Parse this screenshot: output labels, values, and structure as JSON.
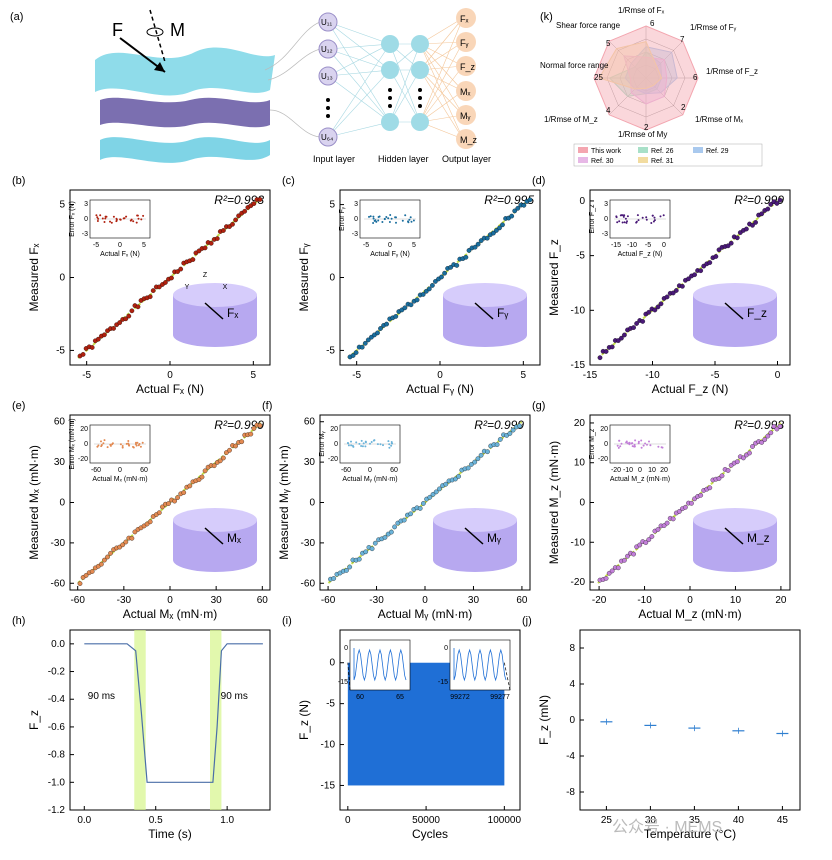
{
  "panel_labels": [
    "(a)",
    "(b)",
    "(c)",
    "(d)",
    "(e)",
    "(f)",
    "(g)",
    "(h)",
    "(i)",
    "(j)",
    "(k)"
  ],
  "panel_a": {
    "force_label": "F",
    "moment_label": "M",
    "inputs": [
      "U₁₁",
      "U₁₂",
      "U₁₃",
      "U₆₄"
    ],
    "outputs": [
      "Fₓ",
      "Fᵧ",
      "F_z",
      "Mₓ",
      "Mᵧ",
      "M_z"
    ],
    "layer_labels": [
      "Input layer",
      "Hidden layer",
      "Output layer"
    ]
  },
  "panel_k": {
    "axes": [
      "1/Rmse of Fₓ",
      "1/Rmse of Fᵧ",
      "1/Rmse of F_z",
      "1/Rmse of Mₓ",
      "1/Rmse of My",
      "1/Rmse of M_z",
      "Normal force range",
      "Shear force range"
    ],
    "axis_ticks": [
      "6",
      "7",
      "6",
      "2",
      "2",
      "4",
      "25",
      "5"
    ],
    "legend": [
      "This work",
      "Ref. 26",
      "Ref. 29",
      "Ref. 30",
      "Ref. 31"
    ],
    "colors": [
      "#f4a6b0",
      "#a8e0c8",
      "#a9c9ee",
      "#e7b8e6",
      "#f2dca0"
    ]
  },
  "chart_data": [
    {
      "id": "b",
      "type": "scatter",
      "title": "",
      "r2": "R²=0.993",
      "xlabel": "Actual Fₓ (N)",
      "ylabel": "Measured Fₓ",
      "xlim": [
        -6,
        6
      ],
      "ylim": [
        -6,
        6
      ],
      "xticks": [
        -5,
        0,
        5
      ],
      "yticks": [
        -5,
        0,
        5
      ],
      "color": "#b0210f",
      "inset": {
        "xlabel": "Actual Fₓ (N)",
        "ylabel": "Error Fₓ (N)",
        "xticks": [
          -5,
          0,
          5
        ],
        "yticks": [
          -3,
          0,
          3
        ]
      },
      "icon_label": "Fₓ",
      "axes_icon": [
        "Z",
        "Y",
        "X"
      ]
    },
    {
      "id": "c",
      "type": "scatter",
      "r2": "R²=0.995",
      "xlabel": "Actual Fᵧ (N)",
      "ylabel": "Measured Fᵧ",
      "xlim": [
        -6,
        6
      ],
      "ylim": [
        -6,
        6
      ],
      "xticks": [
        -5,
        0,
        5
      ],
      "yticks": [
        -5,
        0,
        5
      ],
      "color": "#1a6e9e",
      "inset": {
        "xlabel": "Actual Fᵧ (N)",
        "ylabel": "Error Fᵧ",
        "xticks": [
          -5,
          0,
          5
        ],
        "yticks": [
          -3,
          0,
          3
        ]
      },
      "icon_label": "Fᵧ"
    },
    {
      "id": "d",
      "type": "scatter",
      "r2": "R²=0.999",
      "xlabel": "Actual F_z (N)",
      "ylabel": "Measured F_z",
      "xlim": [
        -15,
        1
      ],
      "ylim": [
        -15,
        1
      ],
      "xticks": [
        -15,
        -10,
        -5,
        0
      ],
      "yticks": [
        -15,
        -10,
        -5,
        0
      ],
      "color": "#4a1a78",
      "inset": {
        "xlabel": "Actual F_z (N)",
        "ylabel": "Error F_z",
        "xticks": [
          -15,
          -10,
          -5,
          0
        ],
        "yticks": [
          -3,
          0,
          3
        ]
      },
      "icon_label": "F_z"
    },
    {
      "id": "e",
      "type": "scatter",
      "r2": "R²=0.999",
      "xlabel": "Actual Mₓ (mN·m)",
      "ylabel": "Measured Mₓ (mN·m)",
      "xlim": [
        -65,
        65
      ],
      "ylim": [
        -65,
        65
      ],
      "xticks": [
        -60,
        -30,
        0,
        30,
        60
      ],
      "yticks": [
        -60,
        -30,
        0,
        30,
        60
      ],
      "color": "#e38a52",
      "inset": {
        "xlabel": "Actual Mₓ (mN·m)",
        "ylabel": "Error Mₓ (mN·m)",
        "xticks": [
          -60,
          0,
          60
        ],
        "yticks": [
          -20,
          0,
          20
        ]
      },
      "icon_label": "Mₓ"
    },
    {
      "id": "f",
      "type": "scatter",
      "r2": "R²=0.999",
      "xlabel": "Actual Mᵧ (mN·m)",
      "ylabel": "Measured Mᵧ (mN·m)",
      "xlim": [
        -65,
        65
      ],
      "ylim": [
        -65,
        65
      ],
      "xticks": [
        -60,
        -30,
        0,
        30,
        60
      ],
      "yticks": [
        -60,
        -30,
        0,
        30,
        60
      ],
      "color": "#6bb3d9",
      "inset": {
        "xlabel": "Actual Mᵧ (mN·m)",
        "ylabel": "Error Mᵧ",
        "xticks": [
          -60,
          0,
          60
        ],
        "yticks": [
          -20,
          0,
          20
        ]
      },
      "icon_label": "Mᵧ"
    },
    {
      "id": "g",
      "type": "scatter",
      "r2": "R²=0.998",
      "xlabel": "Actual M_z (mN·m)",
      "ylabel": "Measured M_z (mN·m)",
      "xlim": [
        -22,
        22
      ],
      "ylim": [
        -22,
        22
      ],
      "xticks": [
        -20,
        -10,
        0,
        10,
        20
      ],
      "yticks": [
        -20,
        -10,
        0,
        10,
        20
      ],
      "color": "#c27fd8",
      "inset": {
        "xlabel": "Actual M_z (mN·m)",
        "ylabel": "Error M_z",
        "xticks": [
          -20,
          -10,
          0,
          10,
          20
        ],
        "yticks": [
          -20,
          0,
          20
        ]
      },
      "icon_label": "M_z"
    },
    {
      "id": "h",
      "type": "line",
      "xlabel": "Time (s)",
      "ylabel": "F_z",
      "xlim": [
        -0.1,
        1.3
      ],
      "ylim": [
        -1.2,
        0.1
      ],
      "xticks": [
        0.0,
        0.5,
        1.0
      ],
      "yticks": [
        0.0,
        -0.2,
        -0.4,
        -0.6,
        -0.8,
        -1.0,
        -1.2
      ],
      "highlights": [
        [
          0.35,
          0.43
        ],
        [
          0.88,
          0.96
        ]
      ],
      "annotations": [
        "90 ms",
        "90 ms"
      ],
      "x": [
        0,
        0.3,
        0.36,
        0.4,
        0.44,
        0.9,
        0.93,
        0.96,
        1.0,
        1.25
      ],
      "y": [
        0,
        0,
        -0.05,
        -0.5,
        -1.0,
        -1.0,
        -0.6,
        -0.05,
        0,
        0
      ]
    },
    {
      "id": "i",
      "type": "area",
      "xlabel": "Cycles",
      "ylabel": "F_z (N)",
      "xlim": [
        -5000,
        110000
      ],
      "ylim": [
        -18,
        4
      ],
      "xticks": [
        0,
        50000,
        100000
      ],
      "yticks": [
        0,
        -5,
        -10,
        -15
      ],
      "fill_range": [
        0,
        100000
      ],
      "fill_y": [
        -15,
        0
      ],
      "color": "#1f6fd6",
      "insets": [
        {
          "xticks": [
            "60",
            "65"
          ],
          "yticks": [
            "0",
            "-15"
          ]
        },
        {
          "xticks": [
            "99272",
            "99277"
          ],
          "yticks": [
            "0",
            "-15"
          ]
        }
      ]
    },
    {
      "id": "j",
      "type": "scatter",
      "xlabel": "Temperature (°C)",
      "ylabel": "F_z (mN)",
      "xlim": [
        22,
        47
      ],
      "ylim": [
        -10,
        10
      ],
      "xticks": [
        25,
        30,
        35,
        40,
        45
      ],
      "yticks": [
        8,
        4,
        0,
        -4,
        -8
      ],
      "x": [
        25,
        30,
        35,
        40,
        45
      ],
      "y": [
        -0.2,
        -0.6,
        -0.9,
        -1.2,
        -1.5
      ],
      "color": "#2f7fd0"
    }
  ],
  "watermark": "公众号 · MEMS"
}
